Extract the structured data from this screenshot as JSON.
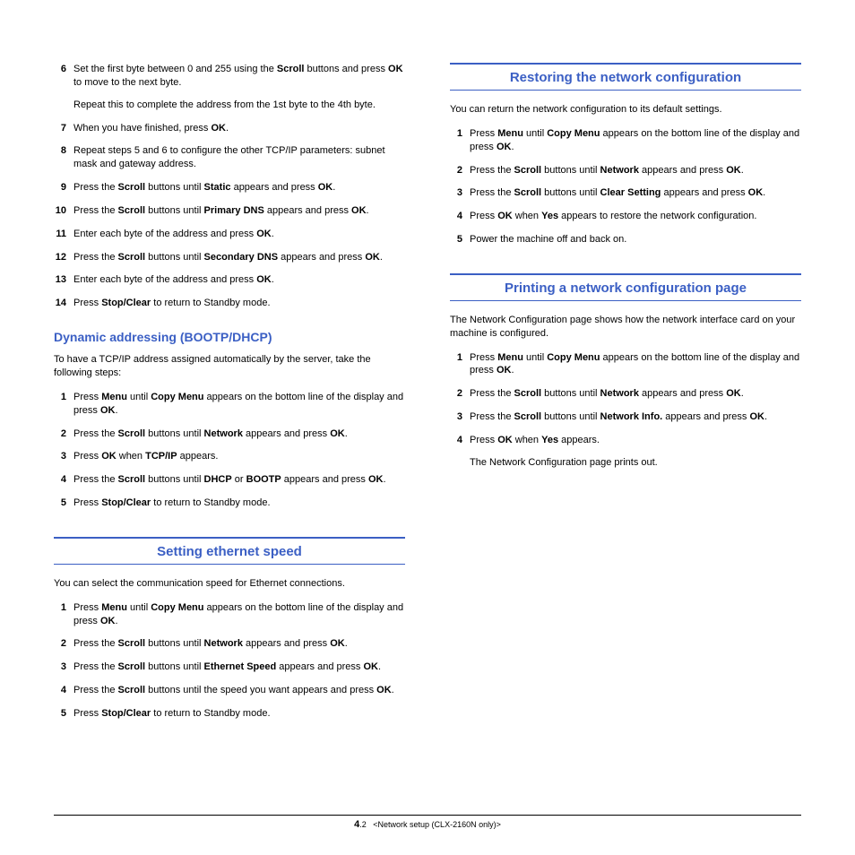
{
  "left": {
    "steps_a": [
      {
        "n": "6",
        "lines": [
          "Set the first byte between 0 and 255 using the <b>Scroll</b> buttons and press <b>OK</b> to move to the next byte.",
          "Repeat this to complete the address from the 1st byte to the 4th byte."
        ]
      },
      {
        "n": "7",
        "lines": [
          "When you have finished, press <b>OK</b>."
        ]
      },
      {
        "n": "8",
        "lines": [
          "Repeat steps 5 and 6 to configure the other TCP/IP parameters: subnet mask and gateway address."
        ]
      },
      {
        "n": "9",
        "lines": [
          "Press the <b>Scroll</b> buttons until <b>Static</b> appears and press <b>OK</b>."
        ]
      },
      {
        "n": "10",
        "lines": [
          "Press the <b>Scroll</b> buttons until <b>Primary DNS</b> appears and press <b>OK</b>."
        ]
      },
      {
        "n": "11",
        "lines": [
          "Enter each byte of the address and press <b>OK</b>."
        ]
      },
      {
        "n": "12",
        "lines": [
          "Press the <b>Scroll</b> buttons until <b>Secondary DNS</b> appears and press <b>OK</b>."
        ]
      },
      {
        "n": "13",
        "lines": [
          "Enter each byte of the address and press <b>OK</b>."
        ]
      },
      {
        "n": "14",
        "lines": [
          "Press <b>Stop/Clear</b> to return to Standby mode."
        ]
      }
    ],
    "sub1_title": "Dynamic addressing (BOOTP/DHCP)",
    "sub1_intro": "To have a TCP/IP address assigned automatically by the server, take the following steps:",
    "steps_b": [
      {
        "n": "1",
        "lines": [
          "Press <b>Menu</b> until <b>Copy Menu</b> appears on the bottom line of the display and press <b>OK</b>."
        ]
      },
      {
        "n": "2",
        "lines": [
          "Press the <b>Scroll</b> buttons until <b>Network</b> appears and press <b>OK</b>."
        ]
      },
      {
        "n": "3",
        "lines": [
          "Press <b>OK</b> when <b>TCP/IP</b> appears."
        ]
      },
      {
        "n": "4",
        "lines": [
          "Press the <b>Scroll</b> buttons until <b>DHCP</b> or <b>BOOTP</b> appears and press <b>OK</b>."
        ]
      },
      {
        "n": "5",
        "lines": [
          "Press <b>Stop/Clear</b> to return to Standby mode."
        ]
      }
    ],
    "sec2_title": "Setting ethernet speed",
    "sec2_intro": "You can select the communication speed for Ethernet connections.",
    "steps_c": [
      {
        "n": "1",
        "lines": [
          "Press <b>Menu</b> until <b>Copy Menu</b> appears on the bottom line of the display and press <b>OK</b>."
        ]
      },
      {
        "n": "2",
        "lines": [
          "Press the <b>Scroll</b> buttons until <b>Network</b> appears and press <b>OK</b>."
        ]
      },
      {
        "n": "3",
        "lines": [
          "Press the <b>Scroll</b> buttons until <b>Ethernet Speed</b> appears and press <b>OK</b>."
        ]
      },
      {
        "n": "4",
        "lines": [
          "Press the <b>Scroll</b> buttons until the speed you want appears and press <b>OK</b>."
        ]
      },
      {
        "n": "5",
        "lines": [
          "Press <b>Stop/Clear</b> to return to Standby mode."
        ]
      }
    ]
  },
  "right": {
    "sec1_title": "Restoring the network configuration",
    "sec1_intro": "You can return the network configuration to its default settings.",
    "steps_a": [
      {
        "n": "1",
        "lines": [
          "Press <b>Menu</b> until <b>Copy Menu</b> appears on the bottom line of the display and press <b>OK</b>."
        ]
      },
      {
        "n": "2",
        "lines": [
          "Press the <b>Scroll</b> buttons until <b>Network</b> appears and press <b>OK</b>."
        ]
      },
      {
        "n": "3",
        "lines": [
          "Press the <b>Scroll</b> buttons until <b>Clear Setting</b> appears and press <b>OK</b>."
        ]
      },
      {
        "n": "4",
        "lines": [
          "Press <b>OK</b> when <b>Yes</b> appears to restore the network configuration."
        ]
      },
      {
        "n": "5",
        "lines": [
          "Power the machine off and back on."
        ]
      }
    ],
    "sec2_title": "Printing a network configuration page",
    "sec2_intro": "The Network Configuration page shows how the network interface card on your machine is configured.",
    "steps_b": [
      {
        "n": "1",
        "lines": [
          "Press <b>Menu</b> until <b>Copy Menu</b> appears on the bottom line of the display and press <b>OK</b>."
        ]
      },
      {
        "n": "2",
        "lines": [
          "Press the <b>Scroll</b> buttons until <b>Network</b> appears and press <b>OK</b>."
        ]
      },
      {
        "n": "3",
        "lines": [
          "Press the <b>Scroll</b> buttons until <b>Network Info.</b> appears and press <b>OK</b>."
        ]
      },
      {
        "n": "4",
        "lines": [
          "Press <b>OK</b> when <b>Yes</b> appears.",
          "The Network Configuration page prints out."
        ]
      }
    ]
  },
  "footer": {
    "chapter": "4",
    "page": ".2",
    "label": "<Network setup (CLX-2160N only)>"
  }
}
